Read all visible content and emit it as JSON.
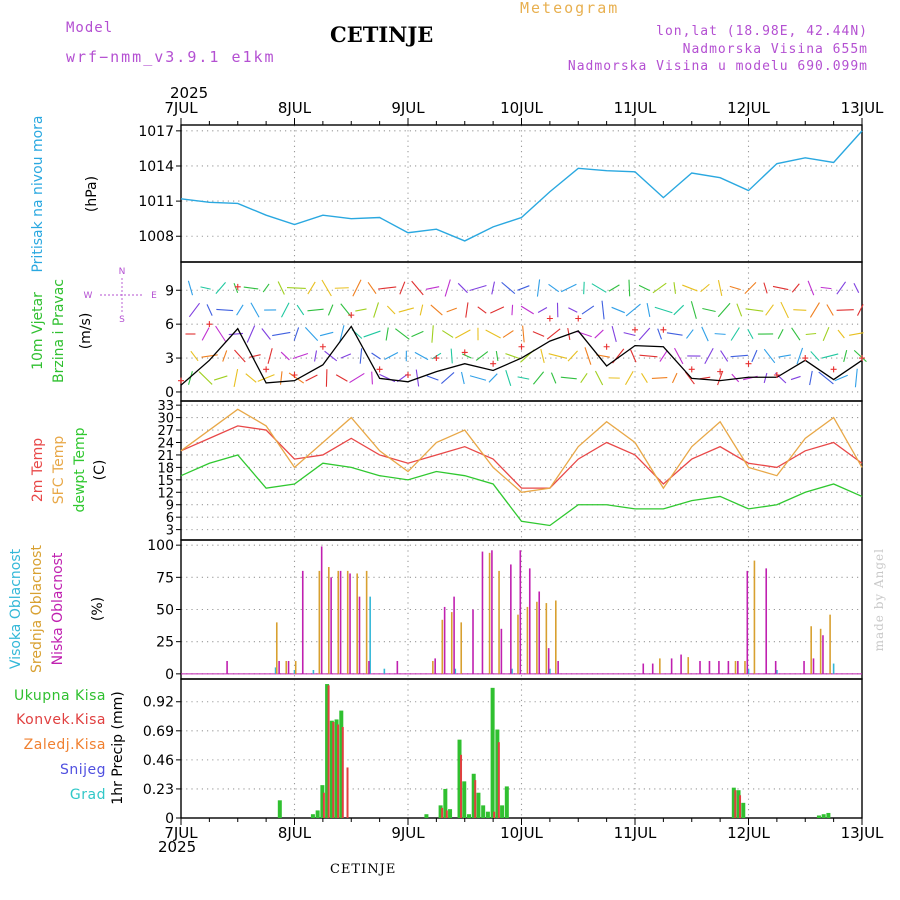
{
  "header": {
    "model_label": "Model",
    "model_run": "wrf−nmm_v3.9.1  e1km",
    "station": "CETINJE",
    "product": "Meteogram",
    "coords": "lon,lat (18.98E, 42.44N)",
    "elevation": "Nadmorska Visina 655m",
    "model_elevation": "Nadmorska Visina u modelu 690.099m",
    "year_top": "2025",
    "year_bottom": "2025",
    "footer_station": "CETINJE",
    "credit": "made by Angel"
  },
  "colors": {
    "pressure": "#2aa8e0",
    "temp2m": "#e84848",
    "sfc_temp": "#e8a848",
    "dewpt": "#30c830",
    "cloud_high": "#34b8d8",
    "cloud_mid": "#d8a030",
    "cloud_low": "#c020b0",
    "precip_total": "#30c030",
    "precip_conv": "#e04040",
    "precip_frozen": "#f08030",
    "snow": "#5050e0",
    "hail": "#30c8c8",
    "wind_speed": "#000000",
    "gust": "#e83030"
  },
  "chart_data": [
    {
      "type": "line",
      "panel": "pressure",
      "ylabel_name": "Pritisak na nivou mora",
      "ylabel_unit": "(hPa)",
      "x_ticks": [
        "7JUL",
        "8JUL",
        "9JUL",
        "10JUL",
        "11JUL",
        "12JUL",
        "13JUL"
      ],
      "x_hours": [
        0,
        6,
        12,
        18,
        24,
        30,
        36,
        42,
        48,
        54,
        60,
        66,
        72,
        78,
        84,
        90,
        96,
        102,
        108,
        114,
        120,
        126,
        132,
        138,
        144
      ],
      "series": [
        {
          "values": [
            1011.2,
            1010.9,
            1010.8,
            1009.8,
            1009.0,
            1009.8,
            1009.5,
            1009.6,
            1008.3,
            1008.6,
            1007.6,
            1008.8,
            1009.6,
            1011.8,
            1013.8,
            1013.6,
            1013.5,
            1011.3,
            1013.4,
            1013.0,
            1011.9,
            1014.2,
            1014.7,
            1014.3,
            1017.0
          ]
        }
      ],
      "y_ticks": [
        1008,
        1011,
        1014,
        1017
      ],
      "ylim": [
        1005.8,
        1017.5
      ],
      "grid": true
    },
    {
      "type": "line",
      "panel": "wind",
      "ylabel_name": "10m Vjetar",
      "ylabel_name2": "Brzina i Pravac",
      "ylabel_unit": "(m/s)",
      "compass": {
        "n": "N",
        "s": "S",
        "e": "E",
        "w": "W"
      },
      "x_ticks": [
        "7JUL",
        "8JUL",
        "9JUL",
        "10JUL",
        "11JUL",
        "12JUL",
        "13JUL"
      ],
      "x_hours": [
        0,
        6,
        12,
        18,
        24,
        30,
        36,
        42,
        48,
        54,
        60,
        66,
        72,
        78,
        84,
        90,
        96,
        102,
        108,
        114,
        120,
        126,
        132,
        138,
        144
      ],
      "series": [
        {
          "name_key": "speed",
          "values": [
            0.6,
            2.8,
            5.6,
            0.8,
            1.0,
            2.4,
            5.8,
            1.2,
            0.9,
            1.8,
            2.5,
            1.9,
            3.0,
            4.5,
            5.4,
            2.3,
            4.1,
            4.0,
            1.2,
            1.0,
            1.3,
            1.3,
            2.8,
            1.1,
            2.8
          ]
        },
        {
          "name_key": "gust",
          "values": [
            1.0,
            6.0,
            9.3,
            2.0,
            1.5,
            4.0,
            6.8,
            2.0,
            1.5,
            3.0,
            3.5,
            2.5,
            4.0,
            6.5,
            6.5,
            4.0,
            5.5,
            5.5,
            2.0,
            1.8,
            2.5,
            1.5,
            3.0,
            2.0,
            3.0
          ]
        }
      ],
      "y_ticks": [
        0,
        3,
        6,
        9
      ],
      "ylim": [
        -0.8,
        11.5
      ],
      "grid": true
    },
    {
      "type": "line",
      "panel": "temperature",
      "ylabel_name": "2m Temp",
      "ylabel_name2": "SFC Temp",
      "ylabel_name3": "dewpt Temp",
      "ylabel_unit": "(C)",
      "x_ticks": [
        "7JUL",
        "8JUL",
        "9JUL",
        "10JUL",
        "11JUL",
        "12JUL",
        "13JUL"
      ],
      "x_hours": [
        0,
        6,
        12,
        18,
        24,
        30,
        36,
        42,
        48,
        54,
        60,
        66,
        72,
        78,
        84,
        90,
        96,
        102,
        108,
        114,
        120,
        126,
        132,
        138,
        144
      ],
      "series": [
        {
          "name_key": "temp2m",
          "values": [
            22,
            25,
            28,
            27,
            20,
            21,
            25,
            21,
            19,
            21,
            23,
            20,
            13,
            13,
            20,
            24,
            21,
            14,
            20,
            23,
            19,
            18,
            22,
            24,
            19
          ]
        },
        {
          "name_key": "sfc_temp",
          "values": [
            22,
            27,
            32,
            28,
            18,
            24,
            30,
            22,
            17,
            24,
            27,
            18,
            12,
            13,
            23,
            29,
            24,
            13,
            23,
            29,
            18,
            16,
            25,
            30,
            18
          ]
        },
        {
          "name_key": "dewpt",
          "values": [
            16,
            19,
            21,
            13,
            14,
            19,
            18,
            16,
            15,
            17,
            16,
            14,
            5,
            4,
            9,
            9,
            8,
            8,
            10,
            11,
            8,
            9,
            12,
            14,
            11
          ]
        }
      ],
      "y_ticks": [
        3,
        6,
        9,
        12,
        15,
        18,
        21,
        24,
        27,
        30,
        33
      ],
      "ylim": [
        0.5,
        34
      ],
      "grid": true
    },
    {
      "type": "bar",
      "panel": "clouds",
      "ylabel_name": "Visoka Oblacnost",
      "ylabel_name2": "Srednja Oblacnost",
      "ylabel_name3": "Niska Oblacnost",
      "ylabel_unit": "(%)",
      "x_ticks": [
        "7JUL",
        "8JUL",
        "9JUL",
        "10JUL",
        "11JUL",
        "12JUL",
        "13JUL"
      ],
      "series": [
        {
          "name_key": "high",
          "x": [
            20,
            24,
            28,
            40,
            43,
            58,
            70,
            78,
            120,
            126,
            138
          ],
          "values": [
            5,
            3,
            3,
            60,
            4,
            4,
            4,
            4,
            4,
            3,
            8
          ]
        },
        {
          "name_key": "mid",
          "x": [
            20,
            22,
            24,
            29,
            31,
            33,
            35,
            37,
            39,
            53,
            55,
            57,
            59,
            65,
            67,
            71,
            73,
            75,
            77,
            79,
            101,
            107,
            117,
            119,
            121,
            133,
            135,
            137
          ],
          "values": [
            40,
            10,
            10,
            80,
            83,
            80,
            80,
            78,
            80,
            10,
            42,
            48,
            40,
            94,
            80,
            46,
            52,
            56,
            55,
            57,
            12,
            13,
            10,
            10,
            88,
            37,
            35,
            46
          ]
        },
        {
          "name_key": "low",
          "x": [
            10,
            21,
            23,
            26,
            30,
            32,
            34,
            36,
            38,
            40,
            46,
            54,
            56,
            58,
            62,
            64,
            66,
            68,
            70,
            72,
            74,
            76,
            78,
            80,
            98,
            100,
            104,
            106,
            110,
            112,
            114,
            116,
            118,
            120,
            124,
            126,
            132,
            134,
            136
          ],
          "values": [
            10,
            10,
            10,
            80,
            99,
            75,
            80,
            78,
            60,
            10,
            10,
            12,
            52,
            60,
            50,
            95,
            96,
            35,
            85,
            96,
            82,
            64,
            20,
            10,
            8,
            8,
            12,
            15,
            10,
            10,
            10,
            10,
            10,
            80,
            82,
            10,
            10,
            12,
            30
          ]
        }
      ],
      "y_ticks": [
        0,
        25,
        50,
        75,
        100
      ],
      "ylim": [
        -4,
        104
      ],
      "grid": true
    },
    {
      "type": "bar",
      "panel": "precipitation",
      "ylabel_name": "1hr Precip (mm)",
      "legend_entries": [
        "Ukupna Kisa",
        "Konvek.Kisa",
        "Zaledj.Kisa",
        "Snijeg",
        "Grad"
      ],
      "x_ticks": [
        "7JUL",
        "8JUL",
        "9JUL",
        "10JUL",
        "11JUL",
        "12JUL",
        "13JUL"
      ],
      "series": [
        {
          "name_key": "total",
          "x": [
            21,
            28,
            29,
            30,
            31,
            32,
            33,
            34,
            52,
            55,
            56,
            57,
            59,
            60,
            61,
            62,
            63,
            64,
            65,
            66,
            67,
            68,
            69,
            117,
            118,
            119,
            135,
            136,
            137
          ],
          "values": [
            0.14,
            0.03,
            0.06,
            0.26,
            1.06,
            0.77,
            0.78,
            0.85,
            0.03,
            0.1,
            0.23,
            0.07,
            0.62,
            0.29,
            0.03,
            0.35,
            0.2,
            0.1,
            0.05,
            1.03,
            0.7,
            0.1,
            0.25,
            0.24,
            0.22,
            0.12,
            0.02,
            0.03,
            0.04
          ]
        },
        {
          "name_key": "conv",
          "x": [
            30,
            31,
            32,
            33,
            34,
            35,
            55,
            56,
            59,
            62,
            66,
            67,
            117,
            118
          ],
          "values": [
            0.2,
            1.05,
            0.76,
            0.74,
            0.72,
            0.4,
            0.08,
            0.06,
            0.5,
            0.3,
            0.05,
            0.6,
            0.22,
            0.18
          ]
        }
      ],
      "y_ticks": [
        0,
        0.23,
        0.46,
        0.69,
        0.92
      ],
      "ylim": [
        0,
        1.1
      ],
      "grid": true
    }
  ]
}
